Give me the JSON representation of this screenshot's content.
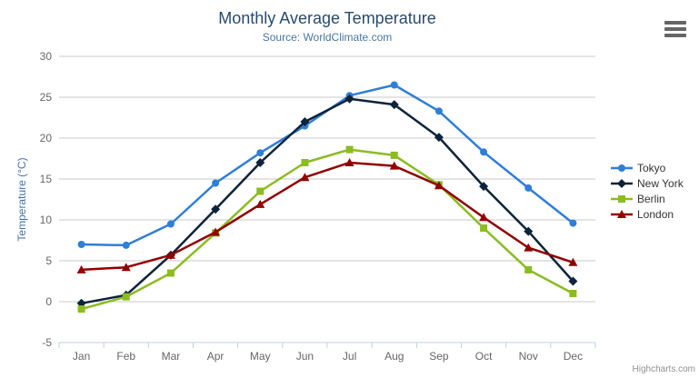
{
  "header": {
    "title": "Monthly Average Temperature",
    "subtitle": "Source: WorldClimate.com"
  },
  "credits": "Highcharts.com",
  "menu_icon": "hamburger-menu-icon",
  "chart_data": {
    "type": "line",
    "title": "Monthly Average Temperature",
    "subtitle": "Source: WorldClimate.com",
    "categories": [
      "Jan",
      "Feb",
      "Mar",
      "Apr",
      "May",
      "Jun",
      "Jul",
      "Aug",
      "Sep",
      "Oct",
      "Nov",
      "Dec"
    ],
    "series": [
      {
        "name": "Tokyo",
        "color": "#2f7ed8",
        "marker": "circle",
        "values": [
          7.0,
          6.9,
          9.5,
          14.5,
          18.2,
          21.5,
          25.2,
          26.5,
          23.3,
          18.3,
          13.9,
          9.6
        ]
      },
      {
        "name": "New York",
        "color": "#0d233a",
        "marker": "diamond",
        "values": [
          -0.2,
          0.8,
          5.7,
          11.3,
          17.0,
          22.0,
          24.8,
          24.1,
          20.1,
          14.1,
          8.6,
          2.5
        ]
      },
      {
        "name": "Berlin",
        "color": "#8bbc21",
        "marker": "square",
        "values": [
          -0.9,
          0.6,
          3.5,
          8.4,
          13.5,
          17.0,
          18.6,
          17.9,
          14.3,
          9.0,
          3.9,
          1.0
        ]
      },
      {
        "name": "London",
        "color": "#910000",
        "marker": "triangle",
        "values": [
          3.9,
          4.2,
          5.7,
          8.5,
          11.9,
          15.2,
          17.0,
          16.6,
          14.2,
          10.3,
          6.6,
          4.8
        ]
      }
    ],
    "xlabel": "",
    "ylabel": "Temperature (°C)",
    "ylim": [
      -5,
      30
    ],
    "yticks": [
      -5,
      0,
      5,
      10,
      15,
      20,
      25,
      30
    ],
    "grid": true,
    "legend_position": "right"
  },
  "colors": {
    "grid": "#c8c8c8",
    "axis_line": "#c0d0e0",
    "tick_label": "#666666",
    "title": "#274b6d",
    "subtitle": "#4d759e",
    "axis_title": "#4572a7",
    "legend_text": "#333333",
    "credits": "#909090",
    "menu_icon": "#666666"
  }
}
